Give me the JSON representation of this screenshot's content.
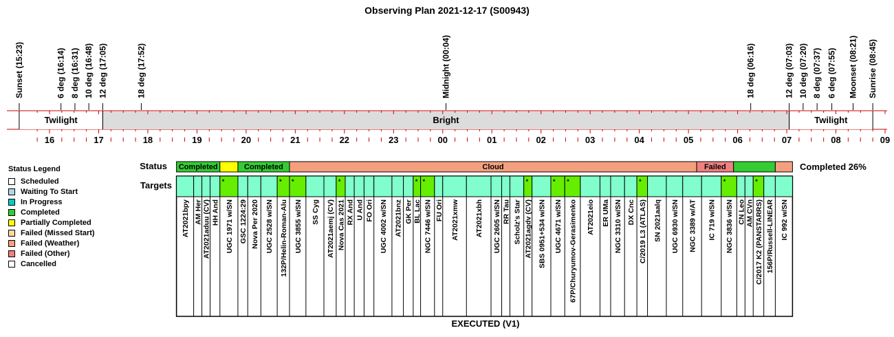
{
  "title": "Observing Plan 2021-12-17 (S00943)",
  "colors": {
    "completed": "#33cc33",
    "partial": "#ffff00",
    "cloud": "#f4a07f",
    "failed": "#f08080",
    "target": "#80ffcc",
    "target_done": "#66ee00",
    "bright": "#dcdcdc",
    "link": "#0000cc",
    "moon": "#0000cc",
    "tick": "#cc0000"
  },
  "events": [
    {
      "label": "Sunset (15:23)",
      "t": 15.383
    },
    {
      "label": "6 deg (16:14)",
      "t": 16.233
    },
    {
      "label": "8 deg (16:31)",
      "t": 16.517
    },
    {
      "label": "10 deg (16:48)",
      "t": 16.8
    },
    {
      "label": "12 deg (17:05)",
      "t": 17.083
    },
    {
      "label": "18 deg (17:52)",
      "t": 17.867
    },
    {
      "label": "Midnight (00:04)",
      "t": 24.067
    },
    {
      "label": "18 deg (06:16)",
      "t": 30.267
    },
    {
      "label": "12 deg (07:03)",
      "t": 31.05
    },
    {
      "label": "10 deg (07:20)",
      "t": 31.333
    },
    {
      "label": "8 deg (07:37)",
      "t": 31.617
    },
    {
      "label": "6 deg (07:55)",
      "t": 31.917
    },
    {
      "label": "Moonset (08:21)",
      "t": 32.35,
      "color": "moon"
    },
    {
      "label": "Sunrise (08:45)",
      "t": 32.75
    }
  ],
  "bands": [
    {
      "label": "Twilight",
      "start": 15.383,
      "end": 17.083,
      "fill": "#ffffff"
    },
    {
      "label": "Bright",
      "start": 17.083,
      "end": 31.05,
      "fill": "#dcdcdc"
    },
    {
      "label": "Twilight",
      "start": 31.05,
      "end": 32.75,
      "fill": "#ffffff"
    }
  ],
  "hour_labels": [
    "16",
    "17",
    "18",
    "19",
    "20",
    "21",
    "22",
    "23",
    "00",
    "01",
    "02",
    "03",
    "04",
    "05",
    "06",
    "07",
    "08",
    "09"
  ],
  "status_label": "Status",
  "targets_label": "Targets",
  "status_segments": [
    {
      "label": "Completed",
      "start": 18.583,
      "end": 19.467,
      "color": "completed"
    },
    {
      "label": "",
      "start": 19.467,
      "end": 19.833,
      "color": "partial"
    },
    {
      "label": "Completed",
      "start": 19.833,
      "end": 20.883,
      "color": "completed"
    },
    {
      "label": "Cloud",
      "start": 20.883,
      "end": 29.167,
      "color": "cloud"
    },
    {
      "label": "Failed",
      "start": 29.167,
      "end": 29.917,
      "color": "failed"
    },
    {
      "label": "",
      "start": 29.917,
      "end": 30.767,
      "color": "completed"
    },
    {
      "label": "",
      "start": 30.767,
      "end": 31.117,
      "color": "cloud"
    }
  ],
  "completed_text": "Completed 26%",
  "targets": [
    {
      "name": "AT2021bpy",
      "start": 18.583,
      "end": 18.933,
      "done": false,
      "mark": ""
    },
    {
      "name": "AM Her",
      "start": 18.933,
      "end": 19.1,
      "done": false,
      "mark": ""
    },
    {
      "name": "AT2021aduu (CV)",
      "start": 19.1,
      "end": 19.267,
      "done": false,
      "mark": ""
    },
    {
      "name": "HH And",
      "start": 19.267,
      "end": 19.467,
      "done": false,
      "mark": ""
    },
    {
      "name": "UGC 1971 w/SN",
      "start": 19.467,
      "end": 19.833,
      "done": true,
      "mark": "*"
    },
    {
      "name": "GSC 1224:29",
      "start": 19.833,
      "end": 20.033,
      "done": false,
      "mark": ""
    },
    {
      "name": "Nova Per 2020",
      "start": 20.033,
      "end": 20.3,
      "done": false,
      "mark": ""
    },
    {
      "name": "UGC 2528 w/SN",
      "start": 20.3,
      "end": 20.633,
      "done": false,
      "mark": ""
    },
    {
      "name": "132P/Helin-Roman-Alu",
      "start": 20.633,
      "end": 20.883,
      "done": true,
      "mark": "*"
    },
    {
      "name": "UGC 3855 w/SN",
      "start": 20.883,
      "end": 21.217,
      "done": true,
      "mark": "*"
    },
    {
      "name": "SS Cyg",
      "start": 21.217,
      "end": 21.583,
      "done": false,
      "mark": ""
    },
    {
      "name": "AT2021aemj (CV)",
      "start": 21.583,
      "end": 21.833,
      "done": false,
      "mark": ""
    },
    {
      "name": "Nova Cas 2021",
      "start": 21.833,
      "end": 22.017,
      "done": true,
      "mark": "*"
    },
    {
      "name": "RX And",
      "start": 22.017,
      "end": 22.2,
      "done": false,
      "mark": ""
    },
    {
      "name": "U And",
      "start": 22.2,
      "end": 22.4,
      "done": false,
      "mark": ""
    },
    {
      "name": "FO Ori",
      "start": 22.4,
      "end": 22.6,
      "done": false,
      "mark": ""
    },
    {
      "name": "UGC 4002 w/SN",
      "start": 22.6,
      "end": 22.967,
      "done": false,
      "mark": ""
    },
    {
      "name": "AT2021bnz",
      "start": 22.967,
      "end": 23.2,
      "done": false,
      "mark": ""
    },
    {
      "name": "GK Per",
      "start": 23.2,
      "end": 23.4,
      "done": false,
      "mark": ""
    },
    {
      "name": "BL Lac",
      "start": 23.4,
      "end": 23.55,
      "done": true,
      "mark": "*"
    },
    {
      "name": "NGC 7446 w/SN",
      "start": 23.55,
      "end": 23.833,
      "done": true,
      "mark": "*"
    },
    {
      "name": "FU Ori",
      "start": 23.833,
      "end": 24.0,
      "done": false,
      "mark": ""
    },
    {
      "name": "AT2021xmw",
      "start": 24.0,
      "end": 24.483,
      "done": false,
      "mark": ""
    },
    {
      "name": "AT2021xbh",
      "start": 24.483,
      "end": 24.983,
      "done": false,
      "mark": ""
    },
    {
      "name": "UGC 2605 w/SN",
      "start": 24.983,
      "end": 25.2,
      "done": false,
      "mark": ""
    },
    {
      "name": "RR Tau",
      "start": 25.2,
      "end": 25.367,
      "done": false,
      "mark": ""
    },
    {
      "name": "Scholz's Star",
      "start": 25.367,
      "end": 25.65,
      "done": false,
      "mark": ""
    },
    {
      "name": "AT2021agdv (CV)",
      "start": 25.65,
      "end": 25.817,
      "done": true,
      "mark": "*"
    },
    {
      "name": "SBS 0951+534 w/SN",
      "start": 25.817,
      "end": 26.2,
      "done": false,
      "mark": ""
    },
    {
      "name": "UGC 4671 w/SN",
      "start": 26.2,
      "end": 26.483,
      "done": true,
      "mark": "*"
    },
    {
      "name": "67P/Churyumov-Gerasimenko",
      "start": 26.483,
      "end": 26.8,
      "done": true,
      "mark": "*"
    },
    {
      "name": "AT2021eio",
      "start": 26.8,
      "end": 27.2,
      "done": false,
      "mark": ""
    },
    {
      "name": "ER UMa",
      "start": 27.2,
      "end": 27.417,
      "done": false,
      "mark": ""
    },
    {
      "name": "NGC 3310 w/SN",
      "start": 27.417,
      "end": 27.7,
      "done": false,
      "mark": ""
    },
    {
      "name": "DX Cnc",
      "start": 27.7,
      "end": 27.95,
      "done": false,
      "mark": ""
    },
    {
      "name": "C/2019 L3 (ATLAS)",
      "start": 27.95,
      "end": 28.167,
      "done": true,
      "mark": "*"
    },
    {
      "name": "SN 2021aalq",
      "start": 28.167,
      "end": 28.55,
      "done": false,
      "mark": ""
    },
    {
      "name": "UGC 6930 w/SN",
      "start": 28.55,
      "end": 28.883,
      "done": false,
      "mark": ""
    },
    {
      "name": "NGC 3389 w/AT",
      "start": 28.883,
      "end": 29.267,
      "done": false,
      "mark": ""
    },
    {
      "name": "IC 719 w/SN",
      "start": 29.267,
      "end": 29.667,
      "done": false,
      "mark": ""
    },
    {
      "name": "NGC 3836 w/SN",
      "start": 29.667,
      "end": 29.983,
      "done": true,
      "mark": "*"
    },
    {
      "name": "CN Leo",
      "start": 29.983,
      "end": 30.15,
      "done": false,
      "mark": ""
    },
    {
      "name": "AM CVn",
      "start": 30.15,
      "end": 30.317,
      "done": false,
      "mark": ""
    },
    {
      "name": "C/2017 K2 (PANSTARRS)",
      "start": 30.317,
      "end": 30.533,
      "done": true,
      "mark": "*"
    },
    {
      "name": "156P/Russell-LINEAR",
      "start": 30.533,
      "end": 30.767,
      "done": false,
      "mark": ""
    },
    {
      "name": "IC 992 w/SN",
      "start": 30.767,
      "end": 31.117,
      "done": false,
      "mark": ""
    }
  ],
  "footer": "EXECUTED (V1)",
  "legend": {
    "title": "Status Legend",
    "items": [
      {
        "label": "Scheduled",
        "color": "#ffffff"
      },
      {
        "label": "Waiting To Start",
        "color": "#add8e6"
      },
      {
        "label": "In Progress",
        "color": "#00cccc"
      },
      {
        "label": "Completed",
        "color": "#33cc33"
      },
      {
        "label": "Partially Completed",
        "color": "#ffff00"
      },
      {
        "label": "Failed (Missed Start)",
        "color": "#ffd9a0"
      },
      {
        "label": "Failed (Weather)",
        "color": "#f4a07f"
      },
      {
        "label": "Failed (Other)",
        "color": "#f08080"
      },
      {
        "label": "Cancelled",
        "color": "#ffffff"
      }
    ]
  }
}
